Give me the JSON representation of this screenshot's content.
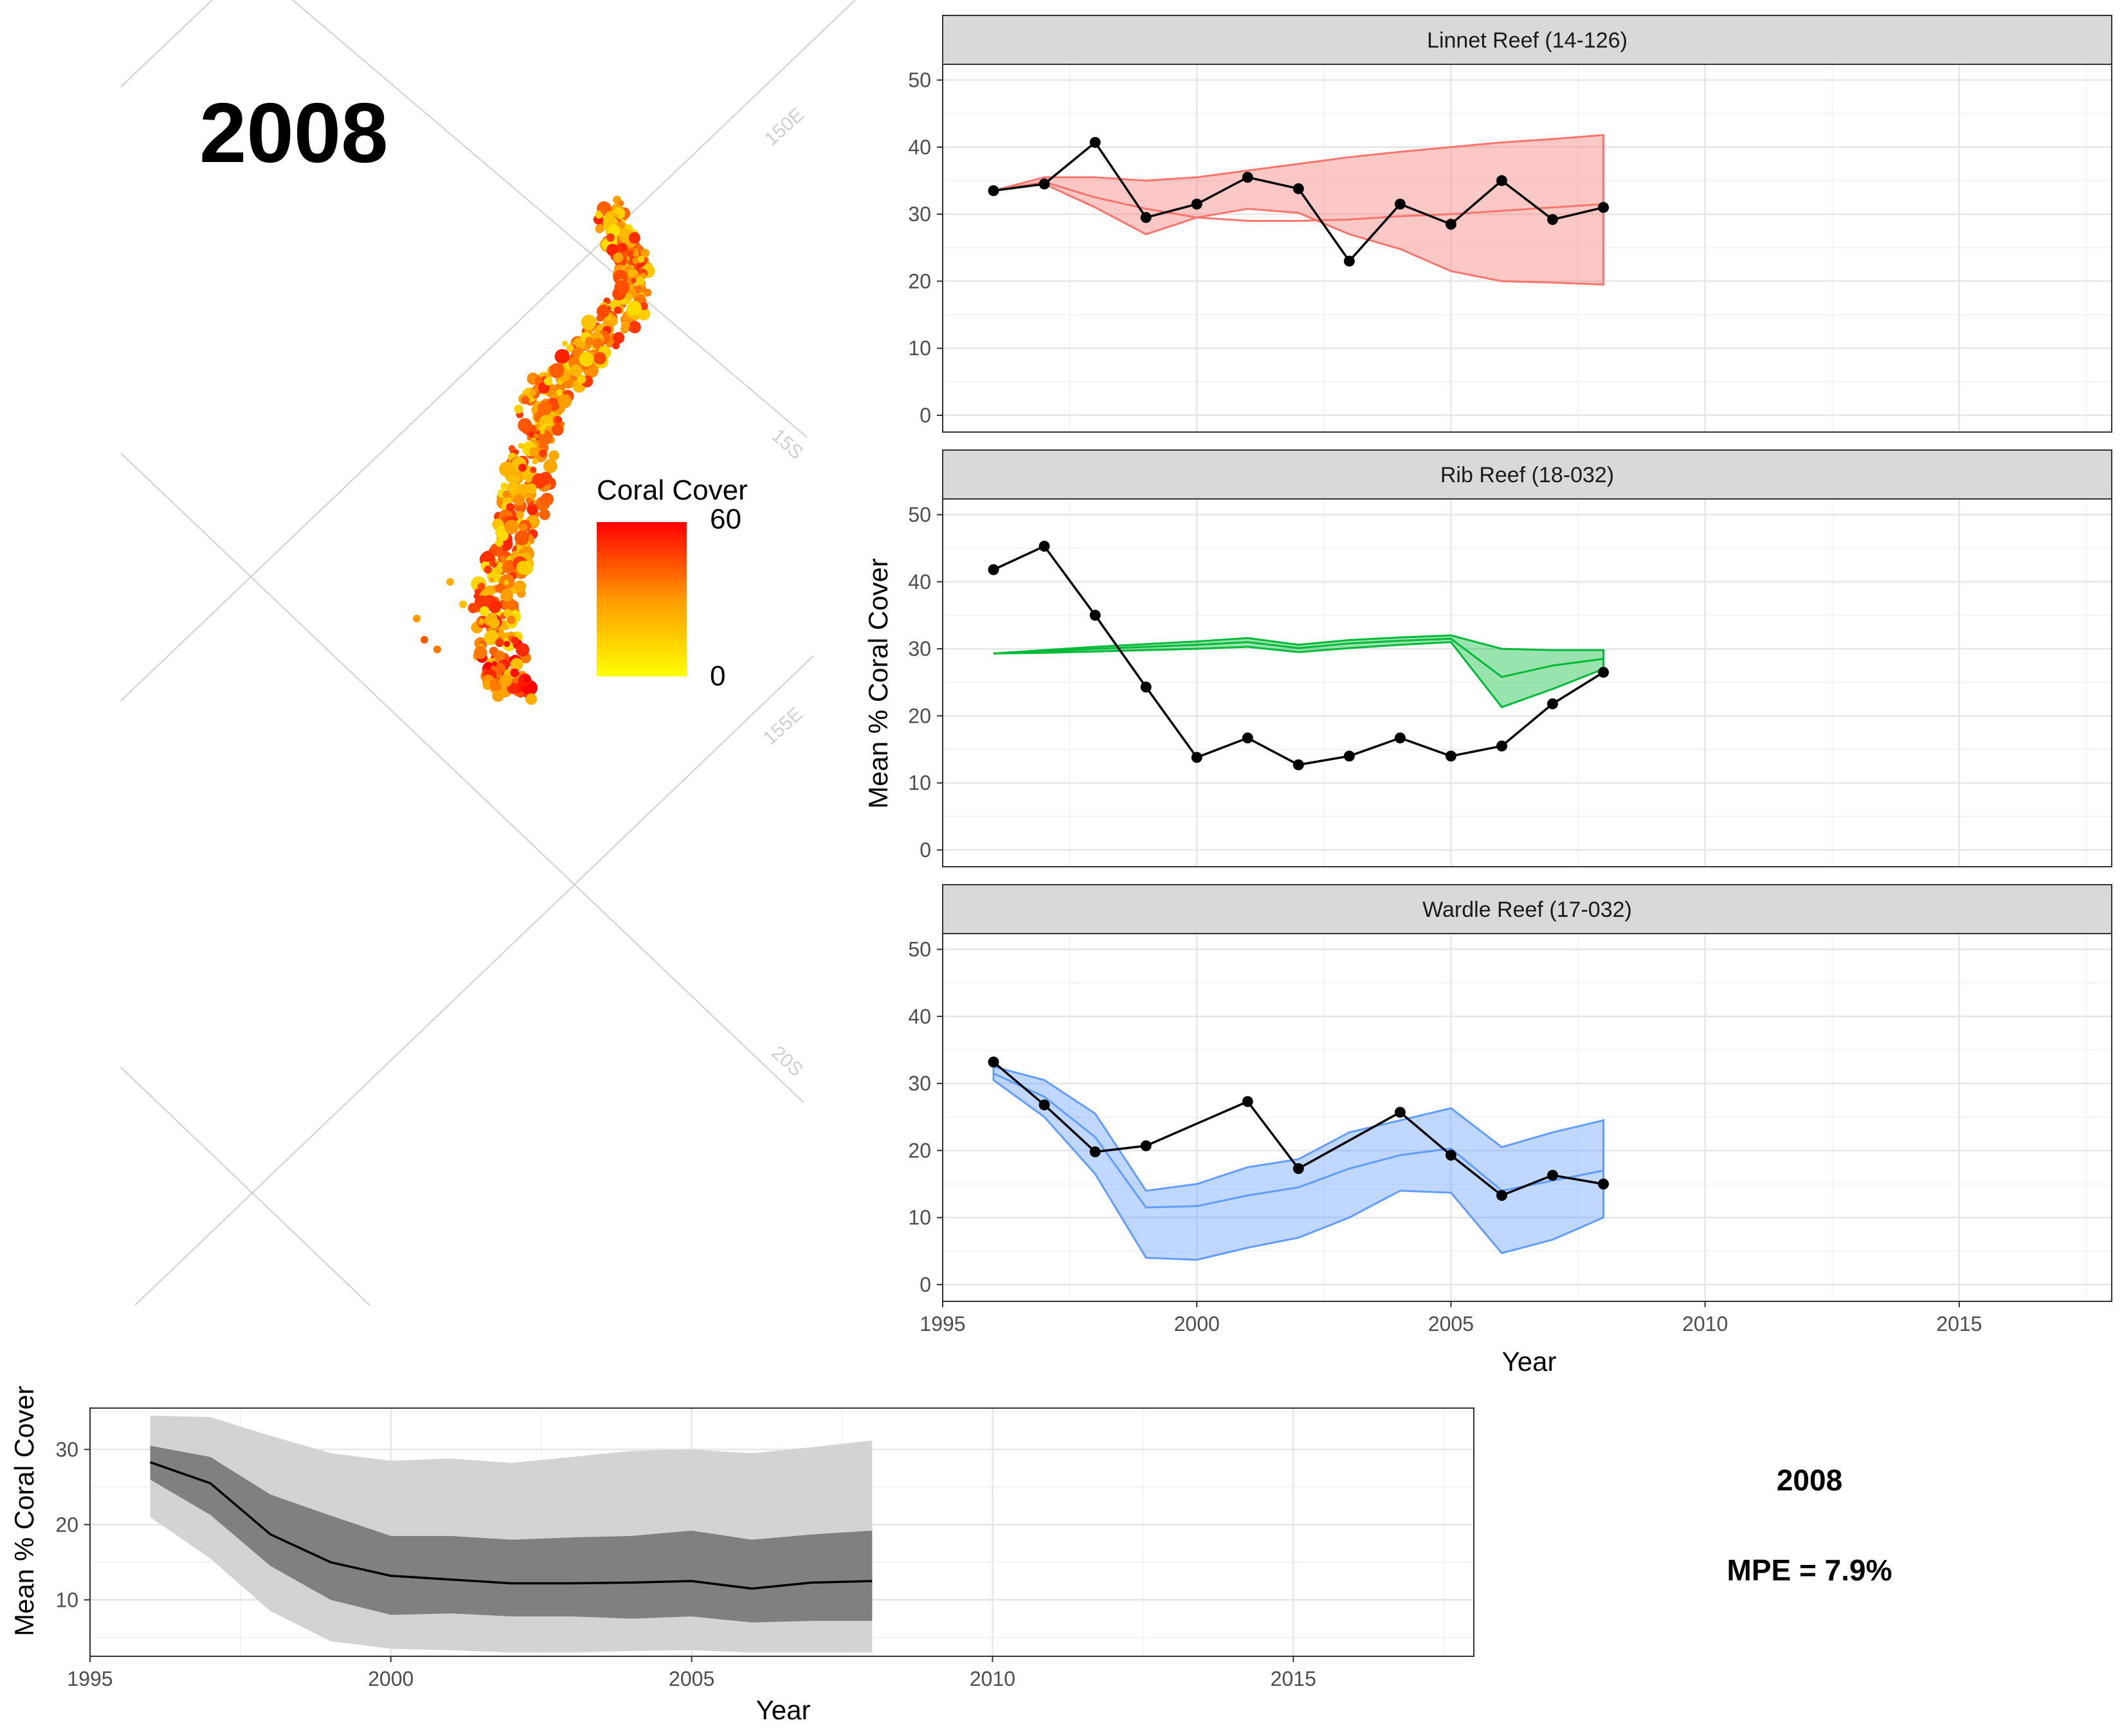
{
  "map": {
    "year": "2008",
    "legend": {
      "title": "Coral Cover",
      "max_label": "60",
      "min_label": "0",
      "low_color": "#ffff00",
      "high_color": "#ff0000"
    },
    "graticule_labels": [
      "150E",
      "15S",
      "155E",
      "20S"
    ]
  },
  "info": {
    "year": "2008",
    "mpe": "MPE = 7.9%"
  },
  "colors": {
    "linnet": "#f8766d",
    "rib": "#00ba38",
    "wardle": "#619cff",
    "observed": "#000000",
    "strip_bg": "#d9d9d9"
  },
  "chart_data": [
    {
      "type": "line",
      "facet": "Linnet Reef (14-126)",
      "ylabel": "Mean % Coral Cover",
      "xlabel": "Year",
      "xlim": [
        1995,
        2018
      ],
      "ylim": [
        0,
        50
      ],
      "x_ticks": [
        1995,
        2000,
        2005,
        2010,
        2015
      ],
      "y_ticks": [
        0,
        10,
        20,
        30,
        40,
        50
      ],
      "x": [
        1996,
        1997,
        1998,
        1999,
        2000,
        2001,
        2002,
        2003,
        2004,
        2005,
        2006,
        2007,
        2008
      ],
      "series": [
        {
          "values": [
            33.5,
            34.5,
            40.7,
            29.5,
            31.5,
            35.5,
            33.8,
            23.0,
            31.5,
            28.5,
            35.0,
            29.2,
            31.0
          ]
        },
        {
          "band_upper": [
            33.5,
            35.5,
            35.5,
            35.0,
            35.5,
            36.5,
            37.5,
            38.5,
            39.3,
            40.0,
            40.7,
            41.2,
            41.8
          ],
          "band_median": [
            33.5,
            34.8,
            32.5,
            30.8,
            29.5,
            29.0,
            29.0,
            29.2,
            29.7,
            30.0,
            30.5,
            31.0,
            31.5
          ],
          "band_lower": [
            33.5,
            34.5,
            31.0,
            27.0,
            29.5,
            30.8,
            30.2,
            27.0,
            24.8,
            21.5,
            20.0,
            19.8,
            19.5
          ]
        }
      ]
    },
    {
      "type": "line",
      "facet": "Rib Reef (18-032)",
      "ylabel": "Mean % Coral Cover",
      "xlabel": "Year",
      "xlim": [
        1995,
        2018
      ],
      "ylim": [
        0,
        50
      ],
      "x_ticks": [
        1995,
        2000,
        2005,
        2010,
        2015
      ],
      "y_ticks": [
        0,
        10,
        20,
        30,
        40,
        50
      ],
      "x": [
        1996,
        1997,
        1998,
        1999,
        2000,
        2001,
        2002,
        2003,
        2004,
        2005,
        2006,
        2007,
        2008
      ],
      "series": [
        {
          "values": [
            41.8,
            45.3,
            35.0,
            24.3,
            13.8,
            16.7,
            12.7,
            14.0,
            16.7,
            14.0,
            15.5,
            21.8,
            26.5
          ]
        },
        {
          "band_upper": [
            29.3,
            29.8,
            30.3,
            30.7,
            31.1,
            31.6,
            30.6,
            31.3,
            31.7,
            32.0,
            30.0,
            29.8,
            29.8
          ],
          "band_median": [
            29.3,
            29.6,
            30.0,
            30.3,
            30.6,
            31.0,
            30.1,
            30.8,
            31.2,
            31.5,
            25.8,
            27.5,
            28.5
          ],
          "band_lower": [
            29.3,
            29.4,
            29.6,
            29.8,
            30.0,
            30.3,
            29.5,
            30.1,
            30.6,
            31.0,
            21.3,
            24.0,
            27.0
          ]
        }
      ]
    },
    {
      "type": "line",
      "facet": "Wardle Reef (17-032)",
      "ylabel": "Mean % Coral Cover",
      "xlabel": "Year",
      "xlim": [
        1995,
        2018
      ],
      "ylim": [
        0,
        50
      ],
      "x_ticks": [
        1995,
        2000,
        2005,
        2010,
        2015
      ],
      "y_ticks": [
        0,
        10,
        20,
        30,
        40,
        50
      ],
      "x": [
        1996,
        1997,
        1998,
        1999,
        2000,
        2001,
        2002,
        2003,
        2004,
        2005,
        2006,
        2007,
        2008
      ],
      "series": [
        {
          "values": [
            33.2,
            26.8,
            19.8,
            20.7,
            null,
            27.3,
            17.3,
            null,
            25.7,
            19.3,
            13.3,
            16.3,
            15.0
          ]
        },
        {
          "band_upper": [
            32.5,
            30.5,
            25.5,
            14.0,
            15.0,
            17.5,
            18.7,
            22.7,
            24.5,
            26.3,
            20.5,
            22.7,
            24.5
          ],
          "band_median": [
            31.5,
            28.0,
            22.0,
            11.5,
            11.7,
            13.3,
            14.5,
            17.3,
            19.3,
            20.3,
            14.0,
            15.5,
            17.0
          ],
          "band_lower": [
            30.5,
            25.0,
            16.5,
            4.0,
            3.7,
            5.5,
            7.0,
            10.0,
            14.0,
            13.7,
            4.7,
            6.7,
            10.0
          ]
        }
      ]
    },
    {
      "type": "area",
      "ylabel": "Mean % Coral Cover",
      "xlabel": "Year",
      "xlim": [
        1995,
        2018
      ],
      "ylim": [
        2.5,
        35.5
      ],
      "x_ticks": [
        1995,
        2000,
        2005,
        2010,
        2015
      ],
      "y_ticks": [
        10,
        20,
        30
      ],
      "x": [
        1996,
        1997,
        1998,
        1999,
        2000,
        2001,
        2002,
        2003,
        2004,
        2005,
        2006,
        2007,
        2008
      ],
      "series": [
        {
          "values": [
            28.3,
            25.5,
            18.7,
            15.0,
            13.2,
            12.7,
            12.2,
            12.2,
            12.3,
            12.5,
            11.5,
            12.3,
            12.5
          ]
        },
        {
          "band_upper": [
            30.5,
            29.0,
            24.0,
            21.2,
            18.5,
            18.5,
            18.0,
            18.3,
            18.5,
            19.2,
            18.0,
            18.7,
            19.2
          ],
          "band_lower": [
            26.0,
            21.3,
            14.5,
            10.0,
            8.0,
            8.2,
            7.8,
            7.8,
            7.5,
            7.8,
            7.0,
            7.2,
            7.2
          ]
        },
        {
          "band_upper": [
            34.5,
            34.3,
            31.8,
            29.5,
            28.5,
            28.8,
            28.2,
            29.0,
            29.8,
            30.0,
            29.5,
            30.3,
            31.2
          ],
          "band_lower": [
            21.0,
            15.5,
            8.5,
            4.5,
            3.5,
            3.3,
            3.0,
            3.0,
            3.2,
            3.3,
            3.0,
            3.0,
            3.0
          ]
        }
      ]
    }
  ]
}
